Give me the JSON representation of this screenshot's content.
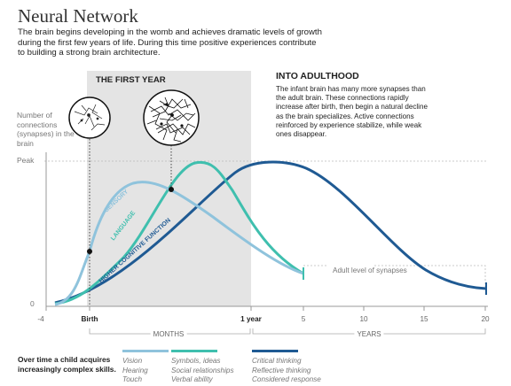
{
  "header": {
    "title": "Neural Network",
    "intro": "The brain begins developing in the womb and achieves dramatic levels of growth during the first few years of life. During this time positive experiences contribute to building a strong brain architecture."
  },
  "annotations": {
    "first_year": "THE FIRST YEAR",
    "adulthood_title": "INTO ADULTHOOD",
    "adulthood_text": "The infant brain has many more synapses than the adult brain. These connections rapidly increase after birth, then begin a natural decline as the brain specializes. Active connections reinforced by experience stabilize, while weak ones disappear.",
    "adult_level": "Adult level of synapses"
  },
  "legend": {
    "intro": "Over time a child acquires increasingly complex skills.",
    "groups": [
      {
        "color": "#8fc3dc",
        "items": [
          "Vision",
          "Hearing",
          "Touch"
        ]
      },
      {
        "color": "#3fbfae",
        "items": [
          "Symbols, ideas",
          "Social relationships",
          "Verbal ability"
        ]
      },
      {
        "color": "#1f5a93",
        "items": [
          "Critical thinking",
          "Reflective thinking",
          "Considered response"
        ]
      }
    ]
  },
  "chart_data": {
    "type": "line",
    "ylabel": "Number of connections (synapses) in the brain",
    "y_tick_labels": [
      "Peak",
      "0"
    ],
    "x_ticks": [
      {
        "label": "-4",
        "bold": false
      },
      {
        "label": "Birth",
        "bold": true
      },
      {
        "label": "1 year",
        "bold": true
      },
      {
        "label": "5",
        "bold": false
      },
      {
        "label": "10",
        "bold": false
      },
      {
        "label": "15",
        "bold": false
      },
      {
        "label": "20",
        "bold": false
      }
    ],
    "x_segments": [
      "MONTHS",
      "YEARS"
    ],
    "highlight_band": [
      "Birth",
      "1 year"
    ],
    "series": [
      {
        "name": "SENSORY",
        "color": "#8fc3dc",
        "peak_at": "3 months"
      },
      {
        "name": "LANGUAGE",
        "color": "#3fbfae",
        "peak_at": "8 months"
      },
      {
        "name": "HIGHER COGNITIVE FUNCTION",
        "color": "#1f5a93",
        "peak_at": "1 year"
      }
    ]
  }
}
